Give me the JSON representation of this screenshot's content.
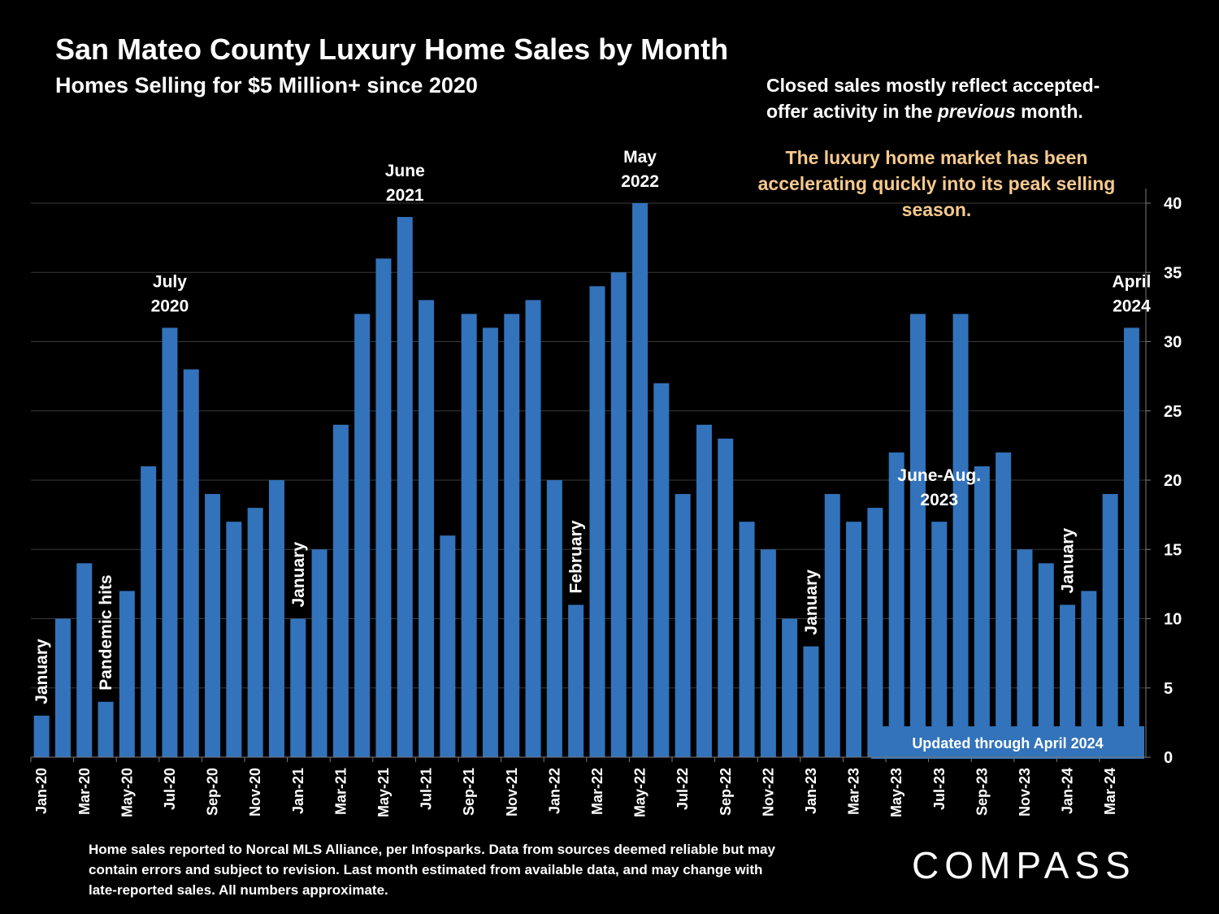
{
  "header": {
    "title": "San Mateo County Luxury Home Sales by Month",
    "subtitle": "Homes Selling for $5 Million+ since 2020"
  },
  "note": {
    "line_before": "Closed sales mostly reflect accepted-offer activity in the ",
    "emphasis": "previous",
    "line_after": " month."
  },
  "highlight": "The luxury home market has been accelerating quickly into its peak selling season.",
  "footnote": "Home sales reported to Norcal MLS Alliance, per Infosparks. Data from sources deemed reliable but may contain errors and subject to revision.  Last month estimated from available data, and may change with late-reported sales. All numbers approximate.",
  "brand": {
    "name": "COMPASS"
  },
  "colors": {
    "bar": "#3273bb",
    "background": "#000000",
    "highlight": "#f6c98e",
    "text": "#ffffff"
  },
  "chart_data": {
    "type": "bar",
    "categories": [
      "Jan-20",
      "Feb-20",
      "Mar-20",
      "Apr-20",
      "May-20",
      "Jun-20",
      "Jul-20",
      "Aug-20",
      "Sep-20",
      "Oct-20",
      "Nov-20",
      "Dec-20",
      "Jan-21",
      "Feb-21",
      "Mar-21",
      "Apr-21",
      "May-21",
      "Jun-21",
      "Jul-21",
      "Aug-21",
      "Sep-21",
      "Oct-21",
      "Nov-21",
      "Dec-21",
      "Jan-22",
      "Feb-22",
      "Mar-22",
      "Apr-22",
      "May-22",
      "Jun-22",
      "Jul-22",
      "Aug-22",
      "Sep-22",
      "Oct-22",
      "Nov-22",
      "Dec-22",
      "Jan-23",
      "Feb-23",
      "Mar-23",
      "Apr-23",
      "May-23",
      "Jun-23",
      "Jul-23",
      "Aug-23",
      "Sep-23",
      "Oct-23",
      "Nov-23",
      "Dec-23",
      "Jan-24",
      "Feb-24",
      "Mar-24",
      "Apr-24"
    ],
    "tick_labels": [
      "Jan-20",
      "Mar-20",
      "May-20",
      "Jul-20",
      "Sep-20",
      "Nov-20",
      "Jan-21",
      "Mar-21",
      "May-21",
      "Jul-21",
      "Sep-21",
      "Nov-21",
      "Jan-22",
      "Mar-22",
      "May-22",
      "Jul-22",
      "Sep-22",
      "Nov-22",
      "Jan-23",
      "Mar-23",
      "May-23",
      "Jul-23",
      "Sep-23",
      "Nov-23",
      "Jan-24",
      "Mar-24"
    ],
    "values": [
      3,
      10,
      14,
      4,
      12,
      21,
      31,
      28,
      19,
      17,
      18,
      20,
      10,
      15,
      24,
      32,
      36,
      39,
      33,
      16,
      32,
      31,
      32,
      33,
      20,
      11,
      34,
      35,
      40,
      27,
      19,
      24,
      23,
      17,
      15,
      10,
      8,
      19,
      17,
      18,
      22,
      32,
      17,
      32,
      21,
      22,
      15,
      14,
      11,
      12,
      19,
      31
    ],
    "ylim": [
      0,
      40
    ],
    "yticks": [
      0,
      5,
      10,
      15,
      20,
      25,
      30,
      35,
      40
    ],
    "y_axis_side": "right",
    "grid": true,
    "annotations": [
      {
        "index": 0,
        "text": "January",
        "rotated": true
      },
      {
        "index": 3,
        "text": "Pandemic hits",
        "rotated": true
      },
      {
        "index": 6,
        "text": "July 2020",
        "lines": [
          "July",
          "2020"
        ]
      },
      {
        "index": 12,
        "text": "January",
        "rotated": true
      },
      {
        "index": 17,
        "text": "June 2021",
        "lines": [
          "June",
          "2021"
        ]
      },
      {
        "index": 25,
        "text": "February",
        "rotated": true
      },
      {
        "index": 28,
        "text": "May 2022",
        "lines": [
          "May",
          "2022"
        ]
      },
      {
        "index": 36,
        "text": "January",
        "rotated": true
      },
      {
        "index": 42,
        "text": "June-Aug. 2023",
        "lines": [
          "June-Aug.",
          "2023"
        ]
      },
      {
        "index": 48,
        "text": "January",
        "rotated": true
      },
      {
        "index": 51,
        "text": "April 2024",
        "lines": [
          "April",
          "2024"
        ]
      }
    ],
    "updated_badge": "Updated through April 2024"
  }
}
